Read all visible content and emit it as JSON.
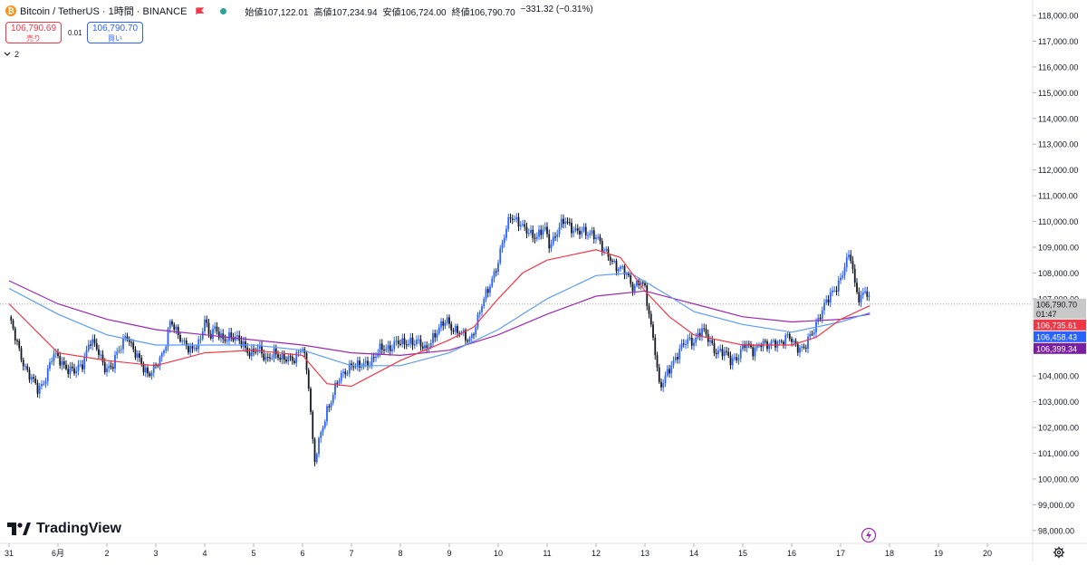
{
  "header": {
    "symbol": "Bitcoin / TetherUS · 1時間 · BINANCE",
    "open_label": "始値",
    "open": "107,122.01",
    "high_label": "高値",
    "high": "107,234.94",
    "low_label": "安値",
    "low": "106,724.00",
    "close_label": "終値",
    "close": "106,790.70",
    "change": "−331.32 (−0.31%)"
  },
  "order": {
    "sell_price": "106,790.69",
    "sell_label": "売り",
    "spread": "0.01",
    "buy_price": "106,790.70",
    "buy_label": "買い"
  },
  "indicator_toggle": "2",
  "brand": "TradingView",
  "colors": {
    "up": "#2962ff",
    "down": "#131722",
    "ma_fast": "#f23645",
    "ma_mid": "#5b9cf6",
    "ma_slow": "#9c27b0",
    "current_label_bg": "#c8c8c8"
  },
  "chart_data": {
    "type": "candlestick",
    "ylim": [
      97500,
      118600
    ],
    "y_ticks": [
      "118,000.00",
      "117,000.00",
      "116,000.00",
      "115,000.00",
      "114,000.00",
      "113,000.00",
      "112,000.00",
      "111,000.00",
      "110,000.00",
      "109,000.00",
      "108,000.00",
      "107,000.00",
      "106,000.00",
      "105,000.00",
      "104,000.00",
      "103,000.00",
      "102,000.00",
      "101,000.00",
      "100,000.00",
      "99,000.00",
      "98,000.00"
    ],
    "x_ticks": [
      "31",
      "6月",
      "2",
      "3",
      "4",
      "5",
      "6",
      "7",
      "8",
      "9",
      "10",
      "11",
      "12",
      "13",
      "14",
      "15",
      "16",
      "17",
      "18",
      "19",
      "20"
    ],
    "close_price": 106790.7,
    "current_price_label": "106,790.70",
    "countdown": "01:47",
    "price_series": [
      {
        "x": 0.0,
        "y": 106300
      },
      {
        "x": 0.15,
        "y": 105300
      },
      {
        "x": 0.3,
        "y": 104500
      },
      {
        "x": 0.45,
        "y": 103900
      },
      {
        "x": 0.6,
        "y": 103400
      },
      {
        "x": 0.75,
        "y": 104000
      },
      {
        "x": 0.9,
        "y": 104800
      },
      {
        "x": 1.05,
        "y": 104600
      },
      {
        "x": 1.2,
        "y": 104300
      },
      {
        "x": 1.35,
        "y": 104100
      },
      {
        "x": 1.5,
        "y": 104500
      },
      {
        "x": 1.65,
        "y": 105400
      },
      {
        "x": 1.8,
        "y": 105000
      },
      {
        "x": 1.95,
        "y": 104400
      },
      {
        "x": 2.1,
        "y": 104300
      },
      {
        "x": 2.25,
        "y": 105000
      },
      {
        "x": 2.4,
        "y": 105700
      },
      {
        "x": 2.55,
        "y": 104900
      },
      {
        "x": 2.7,
        "y": 104500
      },
      {
        "x": 2.85,
        "y": 104100
      },
      {
        "x": 3.0,
        "y": 104300
      },
      {
        "x": 3.15,
        "y": 104900
      },
      {
        "x": 3.3,
        "y": 106200
      },
      {
        "x": 3.45,
        "y": 105500
      },
      {
        "x": 3.6,
        "y": 105300
      },
      {
        "x": 3.75,
        "y": 105000
      },
      {
        "x": 3.9,
        "y": 105200
      },
      {
        "x": 4.0,
        "y": 106300
      },
      {
        "x": 4.1,
        "y": 105600
      },
      {
        "x": 4.2,
        "y": 105800
      },
      {
        "x": 4.35,
        "y": 105400
      },
      {
        "x": 4.5,
        "y": 105600
      },
      {
        "x": 4.65,
        "y": 105400
      },
      {
        "x": 4.8,
        "y": 105200
      },
      {
        "x": 4.95,
        "y": 104900
      },
      {
        "x": 5.1,
        "y": 105000
      },
      {
        "x": 5.25,
        "y": 104700
      },
      {
        "x": 5.4,
        "y": 104900
      },
      {
        "x": 5.55,
        "y": 104600
      },
      {
        "x": 5.7,
        "y": 104800
      },
      {
        "x": 5.85,
        "y": 104600
      },
      {
        "x": 6.0,
        "y": 105100
      },
      {
        "x": 6.1,
        "y": 104200
      },
      {
        "x": 6.15,
        "y": 103200
      },
      {
        "x": 6.2,
        "y": 101600
      },
      {
        "x": 6.25,
        "y": 100700
      },
      {
        "x": 6.35,
        "y": 101500
      },
      {
        "x": 6.5,
        "y": 102700
      },
      {
        "x": 6.7,
        "y": 103700
      },
      {
        "x": 6.85,
        "y": 104100
      },
      {
        "x": 7.0,
        "y": 104500
      },
      {
        "x": 7.15,
        "y": 104300
      },
      {
        "x": 7.3,
        "y": 104500
      },
      {
        "x": 7.45,
        "y": 104700
      },
      {
        "x": 7.6,
        "y": 105000
      },
      {
        "x": 7.75,
        "y": 105100
      },
      {
        "x": 7.9,
        "y": 105300
      },
      {
        "x": 8.05,
        "y": 105200
      },
      {
        "x": 8.2,
        "y": 105400
      },
      {
        "x": 8.35,
        "y": 105300
      },
      {
        "x": 8.5,
        "y": 105000
      },
      {
        "x": 8.65,
        "y": 105500
      },
      {
        "x": 8.8,
        "y": 105800
      },
      {
        "x": 8.95,
        "y": 106200
      },
      {
        "x": 9.1,
        "y": 105800
      },
      {
        "x": 9.25,
        "y": 105600
      },
      {
        "x": 9.4,
        "y": 105400
      },
      {
        "x": 9.55,
        "y": 106000
      },
      {
        "x": 9.7,
        "y": 106900
      },
      {
        "x": 9.85,
        "y": 107700
      },
      {
        "x": 10.0,
        "y": 108400
      },
      {
        "x": 10.15,
        "y": 109600
      },
      {
        "x": 10.25,
        "y": 110300
      },
      {
        "x": 10.35,
        "y": 110100
      },
      {
        "x": 10.5,
        "y": 109700
      },
      {
        "x": 10.65,
        "y": 109600
      },
      {
        "x": 10.8,
        "y": 109400
      },
      {
        "x": 10.95,
        "y": 109700
      },
      {
        "x": 11.05,
        "y": 109100
      },
      {
        "x": 11.2,
        "y": 109600
      },
      {
        "x": 11.35,
        "y": 110000
      },
      {
        "x": 11.5,
        "y": 109800
      },
      {
        "x": 11.65,
        "y": 109600
      },
      {
        "x": 11.8,
        "y": 109500
      },
      {
        "x": 11.95,
        "y": 109600
      },
      {
        "x": 12.05,
        "y": 109300
      },
      {
        "x": 12.15,
        "y": 108800
      },
      {
        "x": 12.3,
        "y": 108600
      },
      {
        "x": 12.45,
        "y": 108200
      },
      {
        "x": 12.6,
        "y": 108000
      },
      {
        "x": 12.75,
        "y": 107500
      },
      {
        "x": 12.9,
        "y": 107700
      },
      {
        "x": 13.0,
        "y": 107300
      },
      {
        "x": 13.1,
        "y": 106200
      },
      {
        "x": 13.2,
        "y": 105200
      },
      {
        "x": 13.3,
        "y": 103500
      },
      {
        "x": 13.4,
        "y": 103800
      },
      {
        "x": 13.55,
        "y": 104500
      },
      {
        "x": 13.7,
        "y": 105000
      },
      {
        "x": 13.85,
        "y": 105300
      },
      {
        "x": 14.0,
        "y": 105400
      },
      {
        "x": 14.15,
        "y": 105800
      },
      {
        "x": 14.3,
        "y": 105400
      },
      {
        "x": 14.45,
        "y": 105000
      },
      {
        "x": 14.6,
        "y": 104900
      },
      {
        "x": 14.75,
        "y": 104600
      },
      {
        "x": 14.9,
        "y": 104800
      },
      {
        "x": 15.05,
        "y": 105200
      },
      {
        "x": 15.2,
        "y": 105000
      },
      {
        "x": 15.35,
        "y": 105300
      },
      {
        "x": 15.5,
        "y": 105100
      },
      {
        "x": 15.65,
        "y": 105400
      },
      {
        "x": 15.8,
        "y": 105300
      },
      {
        "x": 15.95,
        "y": 105500
      },
      {
        "x": 16.1,
        "y": 105200
      },
      {
        "x": 16.25,
        "y": 105000
      },
      {
        "x": 16.4,
        "y": 105600
      },
      {
        "x": 16.55,
        "y": 106300
      },
      {
        "x": 16.7,
        "y": 106800
      },
      {
        "x": 16.85,
        "y": 107300
      },
      {
        "x": 17.0,
        "y": 107800
      },
      {
        "x": 17.1,
        "y": 108300
      },
      {
        "x": 17.2,
        "y": 108700
      },
      {
        "x": 17.3,
        "y": 107500
      },
      {
        "x": 17.4,
        "y": 107000
      },
      {
        "x": 17.5,
        "y": 107300
      },
      {
        "x": 17.6,
        "y": 106800
      }
    ],
    "ma_fast": {
      "name": "",
      "value_label": "106,735.61",
      "points": [
        {
          "x": 0,
          "y": 106800
        },
        {
          "x": 1,
          "y": 104900
        },
        {
          "x": 2,
          "y": 104600
        },
        {
          "x": 3,
          "y": 104400
        },
        {
          "x": 4,
          "y": 104900
        },
        {
          "x": 5,
          "y": 105000
        },
        {
          "x": 6,
          "y": 104800
        },
        {
          "x": 6.5,
          "y": 103700
        },
        {
          "x": 7,
          "y": 103600
        },
        {
          "x": 8,
          "y": 104600
        },
        {
          "x": 9,
          "y": 105400
        },
        {
          "x": 9.5,
          "y": 105900
        },
        {
          "x": 10,
          "y": 107000
        },
        {
          "x": 10.5,
          "y": 108000
        },
        {
          "x": 11,
          "y": 108500
        },
        {
          "x": 12,
          "y": 108900
        },
        {
          "x": 12.5,
          "y": 108600
        },
        {
          "x": 13,
          "y": 107300
        },
        {
          "x": 13.5,
          "y": 106300
        },
        {
          "x": 14,
          "y": 105600
        },
        {
          "x": 15,
          "y": 105200
        },
        {
          "x": 16,
          "y": 105200
        },
        {
          "x": 16.5,
          "y": 105500
        },
        {
          "x": 17,
          "y": 106200
        },
        {
          "x": 17.6,
          "y": 106735
        }
      ]
    },
    "ma_mid": {
      "name": "",
      "value_label": "106,458.43",
      "points": [
        {
          "x": 0,
          "y": 107400
        },
        {
          "x": 1,
          "y": 106400
        },
        {
          "x": 2,
          "y": 105600
        },
        {
          "x": 3,
          "y": 105200
        },
        {
          "x": 4,
          "y": 105200
        },
        {
          "x": 5,
          "y": 105200
        },
        {
          "x": 6,
          "y": 105000
        },
        {
          "x": 7,
          "y": 104400
        },
        {
          "x": 8,
          "y": 104400
        },
        {
          "x": 9,
          "y": 104900
        },
        {
          "x": 10,
          "y": 105800
        },
        {
          "x": 11,
          "y": 107000
        },
        {
          "x": 12,
          "y": 107900
        },
        {
          "x": 12.7,
          "y": 108000
        },
        {
          "x": 13.5,
          "y": 107100
        },
        {
          "x": 14,
          "y": 106500
        },
        {
          "x": 15,
          "y": 106000
        },
        {
          "x": 16,
          "y": 105700
        },
        {
          "x": 17,
          "y": 106100
        },
        {
          "x": 17.6,
          "y": 106458
        }
      ]
    },
    "ma_slow": {
      "name": "",
      "value_label": "106,399.34",
      "points": [
        {
          "x": 0,
          "y": 107700
        },
        {
          "x": 1,
          "y": 106800
        },
        {
          "x": 2,
          "y": 106200
        },
        {
          "x": 3,
          "y": 105800
        },
        {
          "x": 4,
          "y": 105600
        },
        {
          "x": 5,
          "y": 105400
        },
        {
          "x": 6,
          "y": 105200
        },
        {
          "x": 7,
          "y": 104900
        },
        {
          "x": 8,
          "y": 104800
        },
        {
          "x": 9,
          "y": 105000
        },
        {
          "x": 10,
          "y": 105600
        },
        {
          "x": 11,
          "y": 106400
        },
        {
          "x": 12,
          "y": 107100
        },
        {
          "x": 13,
          "y": 107300
        },
        {
          "x": 14,
          "y": 106800
        },
        {
          "x": 15,
          "y": 106300
        },
        {
          "x": 16,
          "y": 106100
        },
        {
          "x": 17,
          "y": 106200
        },
        {
          "x": 17.6,
          "y": 106399
        }
      ]
    }
  }
}
